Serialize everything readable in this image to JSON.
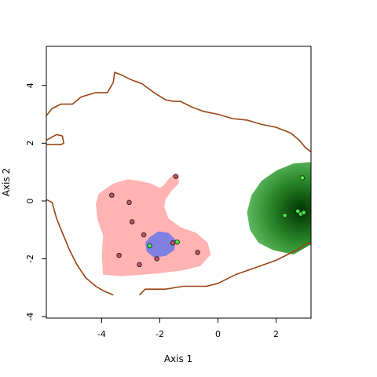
{
  "chart_data": {
    "type": "scatter",
    "xlabel": "Axis 1",
    "ylabel": "Axis 2",
    "xlim": [
      -5.9,
      3.2
    ],
    "ylim": [
      -4.05,
      5.35
    ],
    "x_ticks": [
      -4,
      -2,
      0,
      2
    ],
    "y_ticks": [
      -4,
      -2,
      0,
      2,
      4
    ],
    "x_tick_labels": [
      "-4",
      "-2",
      "0",
      "2"
    ],
    "y_tick_labels": [
      "-4",
      "-2",
      "0",
      "2",
      "4"
    ],
    "grid": false,
    "legend": "none",
    "series": [
      {
        "color": "#c95060",
        "points": [
          [
            -3.65,
            0.2
          ],
          [
            -3.05,
            -0.05
          ],
          [
            -2.95,
            -0.72
          ],
          [
            -2.55,
            -1.17
          ],
          [
            -1.45,
            0.85
          ],
          [
            -1.55,
            -1.45
          ],
          [
            -0.7,
            -1.78
          ],
          [
            -3.4,
            -1.88
          ],
          [
            -2.7,
            -2.2
          ],
          [
            -2.1,
            -2.0
          ]
        ]
      },
      {
        "color": "#44ee44",
        "points": [
          [
            -2.35,
            -1.55
          ],
          [
            -1.4,
            -1.42
          ],
          [
            2.9,
            0.8
          ],
          [
            2.3,
            -0.5
          ],
          [
            2.75,
            -0.35
          ],
          [
            2.85,
            -0.45
          ],
          [
            2.95,
            -0.4
          ]
        ]
      }
    ],
    "regions": [
      {
        "color": "#ffb3b3",
        "outline": [
          [
            -3.9,
            0.4
          ],
          [
            -3.6,
            0.6
          ],
          [
            -3.1,
            0.75
          ],
          [
            -2.7,
            0.7
          ],
          [
            -2.3,
            0.6
          ],
          [
            -2.0,
            0.45
          ],
          [
            -1.85,
            0.55
          ],
          [
            -1.75,
            0.7
          ],
          [
            -1.55,
            0.9
          ],
          [
            -1.35,
            0.85
          ],
          [
            -1.35,
            0.6
          ],
          [
            -1.6,
            0.35
          ],
          [
            -1.8,
            0.05
          ],
          [
            -1.85,
            -0.2
          ],
          [
            -1.7,
            -0.6
          ],
          [
            -1.3,
            -0.9
          ],
          [
            -0.75,
            -1.1
          ],
          [
            -0.35,
            -1.45
          ],
          [
            -0.25,
            -1.85
          ],
          [
            -0.6,
            -2.25
          ],
          [
            -1.2,
            -2.4
          ],
          [
            -2.0,
            -2.5
          ],
          [
            -2.6,
            -2.55
          ],
          [
            -3.3,
            -2.6
          ],
          [
            -3.95,
            -2.55
          ],
          [
            -4.0,
            -1.9
          ],
          [
            -3.95,
            -1.2
          ],
          [
            -4.15,
            -0.6
          ],
          [
            -4.2,
            -0.1
          ],
          [
            -4.1,
            0.25
          ]
        ]
      },
      {
        "color": "#8080e0",
        "outline": [
          [
            -2.35,
            -1.25
          ],
          [
            -2.05,
            -1.05
          ],
          [
            -1.7,
            -1.1
          ],
          [
            -1.45,
            -1.35
          ],
          [
            -1.5,
            -1.7
          ],
          [
            -1.8,
            -1.9
          ],
          [
            -2.2,
            -1.95
          ],
          [
            -2.45,
            -1.75
          ],
          [
            -2.5,
            -1.45
          ]
        ]
      },
      {
        "color_outer": "#88dd88",
        "color_inner": "#003300",
        "center": [
          2.85,
          -0.35
        ],
        "outline": [
          [
            1.0,
            -0.4
          ],
          [
            1.15,
            0.2
          ],
          [
            1.5,
            0.7
          ],
          [
            2.0,
            1.05
          ],
          [
            2.6,
            1.3
          ],
          [
            3.2,
            1.35
          ],
          [
            3.2,
            -1.5
          ],
          [
            2.6,
            -1.85
          ],
          [
            1.9,
            -1.7
          ],
          [
            1.4,
            -1.45
          ],
          [
            1.1,
            -1.0
          ]
        ]
      }
    ],
    "contours": [
      {
        "color": "#994411",
        "points": [
          [
            -5.9,
            2.95
          ],
          [
            -5.7,
            3.2
          ],
          [
            -5.4,
            3.35
          ],
          [
            -5.0,
            3.35
          ],
          [
            -4.7,
            3.6
          ],
          [
            -4.2,
            3.75
          ],
          [
            -3.8,
            3.75
          ],
          [
            -3.6,
            4.1
          ],
          [
            -3.55,
            4.45
          ],
          [
            -3.3,
            4.35
          ],
          [
            -3.0,
            4.2
          ],
          [
            -2.6,
            4.05
          ],
          [
            -2.2,
            3.75
          ],
          [
            -1.8,
            3.5
          ],
          [
            -1.55,
            3.45
          ],
          [
            -1.3,
            3.45
          ],
          [
            -0.9,
            3.25
          ],
          [
            -0.5,
            3.1
          ],
          [
            0.0,
            3.0
          ],
          [
            0.5,
            2.85
          ],
          [
            1.0,
            2.8
          ],
          [
            1.5,
            2.65
          ],
          [
            2.0,
            2.55
          ],
          [
            2.5,
            2.35
          ],
          [
            2.8,
            2.1
          ],
          [
            3.0,
            1.85
          ],
          [
            3.2,
            1.7
          ]
        ]
      },
      {
        "color": "#994411",
        "points": [
          [
            -5.9,
            2.1
          ],
          [
            -5.55,
            2.3
          ],
          [
            -5.35,
            2.25
          ],
          [
            -5.3,
            2.0
          ],
          [
            -5.4,
            1.95
          ],
          [
            -5.9,
            1.95
          ]
        ]
      },
      {
        "color": "#994411",
        "points": [
          [
            -5.9,
            0.05
          ],
          [
            -5.7,
            -0.05
          ],
          [
            -5.55,
            -0.6
          ],
          [
            -5.35,
            -1.1
          ],
          [
            -5.1,
            -1.7
          ],
          [
            -4.85,
            -2.2
          ],
          [
            -4.55,
            -2.65
          ],
          [
            -4.2,
            -2.95
          ],
          [
            -3.95,
            -3.1
          ],
          [
            -3.6,
            -3.25
          ]
        ]
      },
      {
        "color": "#994411",
        "points": [
          [
            -2.7,
            -3.25
          ],
          [
            -2.5,
            -3.05
          ],
          [
            -1.8,
            -3.05
          ],
          [
            -1.2,
            -2.95
          ],
          [
            -0.4,
            -2.95
          ],
          [
            0.0,
            -2.85
          ],
          [
            0.6,
            -2.55
          ],
          [
            1.3,
            -2.3
          ],
          [
            2.0,
            -2.05
          ],
          [
            2.4,
            -1.85
          ],
          [
            2.8,
            -1.65
          ],
          [
            3.0,
            -1.5
          ],
          [
            3.2,
            -1.45
          ]
        ]
      }
    ]
  }
}
